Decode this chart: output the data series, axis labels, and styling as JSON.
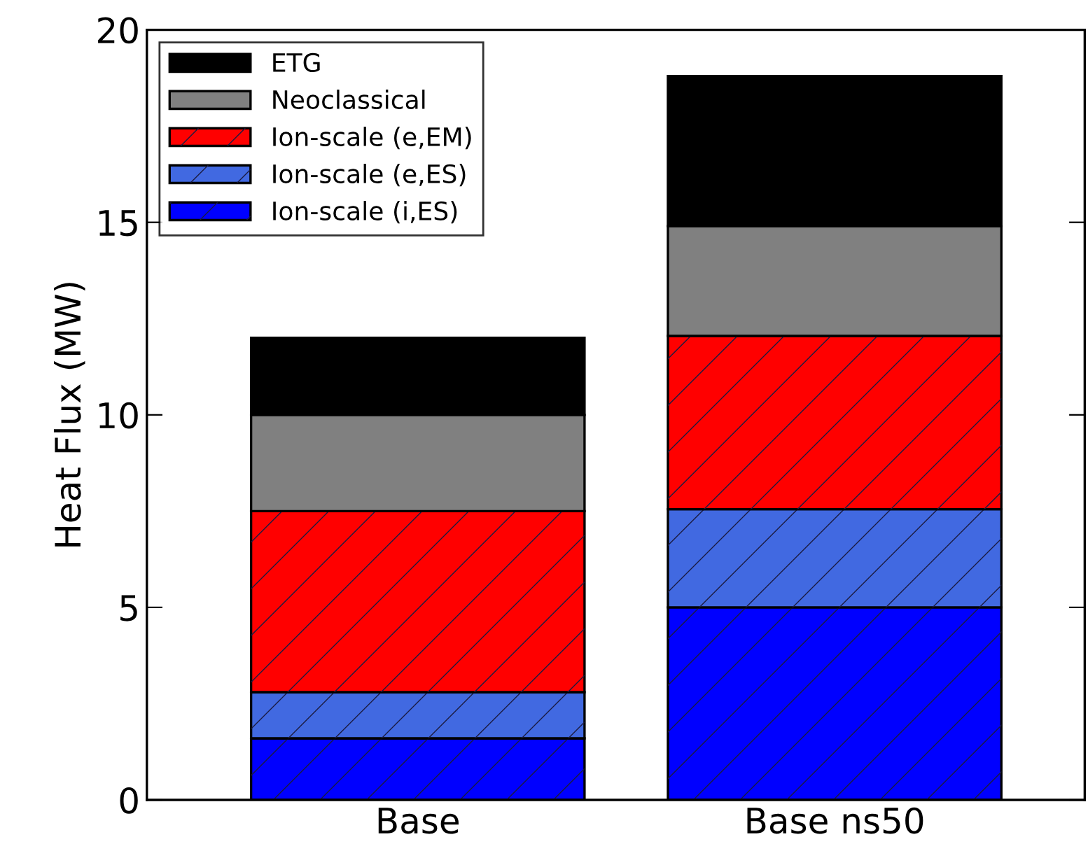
{
  "chart_data": {
    "type": "bar",
    "stacked": true,
    "ylabel": "Heat Flux (MW)",
    "categories": [
      "Base",
      "Base ns50"
    ],
    "series": [
      {
        "name": "Ion-scale (i,ES)",
        "color": "#0000ff",
        "values": [
          1.6,
          5.0
        ]
      },
      {
        "name": "Ion-scale (e,ES)",
        "color": "#4169e1",
        "values": [
          1.2,
          2.55
        ]
      },
      {
        "name": "Ion-scale (e,EM)",
        "color": "#ff0000",
        "values": [
          4.7,
          4.5
        ]
      },
      {
        "name": "Neoclassical",
        "color": "#808080",
        "values": [
          2.5,
          2.85
        ]
      },
      {
        "name": "ETG",
        "color": "#000000",
        "values": [
          2.0,
          3.9
        ]
      }
    ],
    "ylim": [
      0,
      20
    ],
    "yticks": [
      0,
      5,
      10,
      15,
      20
    ],
    "grid": false,
    "legend": "top left"
  }
}
